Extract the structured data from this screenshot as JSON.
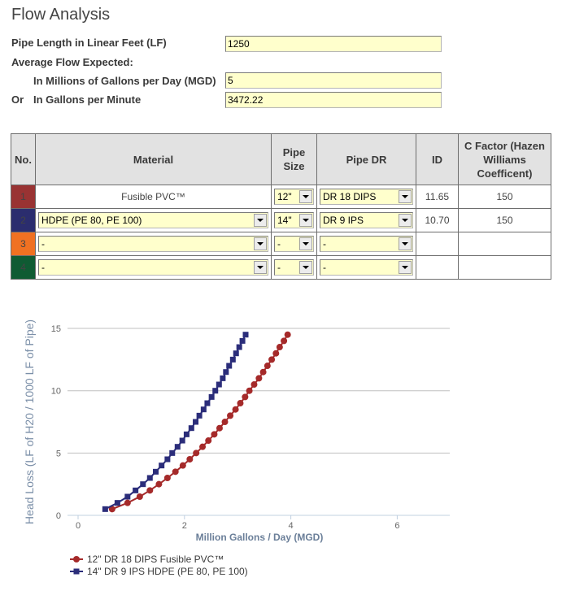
{
  "page": {
    "title": "Flow Analysis"
  },
  "form": {
    "pipe_length": {
      "label": "Pipe Length in Linear Feet (LF)",
      "value": "1250"
    },
    "average_flow_label": "Average Flow Expected:",
    "mgd": {
      "label": "In Millions of Gallons per Day (MGD)",
      "value": "5"
    },
    "gpm": {
      "prefix": "Or",
      "label": "In Gallons per Minute",
      "value": "3472.22"
    }
  },
  "table": {
    "headers": {
      "no": "No.",
      "material": "Material",
      "pipe_size": "Pipe Size",
      "pipe_dr": "Pipe DR",
      "id": "ID",
      "c_factor": "C Factor (Hazen Williams Coefficent)"
    },
    "rows": [
      {
        "no": "1",
        "color": "#993333",
        "material": "Fusible PVC™",
        "material_is_select": false,
        "pipe_size": "12\"",
        "pipe_dr": "DR 18 DIPS",
        "id": "11.65",
        "c_factor": "150"
      },
      {
        "no": "2",
        "color": "#2b2d6e",
        "material": "HDPE (PE 80, PE 100)",
        "material_is_select": true,
        "pipe_size": "14\"",
        "pipe_dr": "DR 9 IPS",
        "id": "10.70",
        "c_factor": "150"
      },
      {
        "no": "3",
        "color": "#f07122",
        "material": "-",
        "material_is_select": true,
        "pipe_size": "-",
        "pipe_dr": "-",
        "id": "",
        "c_factor": ""
      },
      {
        "no": "4",
        "color": "#0f5b33",
        "material": "-",
        "material_is_select": true,
        "pipe_size": "-",
        "pipe_dr": "-",
        "id": "",
        "c_factor": ""
      }
    ]
  },
  "chart_data": {
    "type": "line",
    "title": "",
    "xlabel": "Million Gallons / Day (MGD)",
    "ylabel": "Head Loss (LF of H20 / 1000 LF of Pipe)",
    "xlim": [
      0,
      7
    ],
    "ylim": [
      0,
      15
    ],
    "x_ticks": [
      0,
      2,
      4,
      6
    ],
    "y_ticks": [
      0,
      5,
      10,
      15
    ],
    "grid": "horizontal",
    "legend_position": "bottom-left",
    "series": [
      {
        "name": "12\" DR 18 DIPS Fusible PVC™",
        "color": "#a52a2a",
        "marker": "circle",
        "x": [
          0.64,
          0.93,
          1.16,
          1.35,
          1.52,
          1.68,
          1.83,
          1.97,
          2.1,
          2.22,
          2.34,
          2.45,
          2.56,
          2.66,
          2.76,
          2.86,
          2.96,
          3.05,
          3.14,
          3.22,
          3.31,
          3.4,
          3.48,
          3.56,
          3.64,
          3.72,
          3.79,
          3.87,
          3.94
        ],
        "y": [
          0.5,
          1.0,
          1.5,
          2.0,
          2.5,
          3.0,
          3.5,
          4.0,
          4.5,
          5.0,
          5.5,
          6.0,
          6.5,
          7.0,
          7.5,
          8.0,
          8.5,
          9.0,
          9.5,
          10.0,
          10.5,
          11.0,
          11.5,
          12.0,
          12.5,
          13.0,
          13.5,
          14.0,
          14.5
        ]
      },
      {
        "name": "14\" DR 9 IPS HDPE (PE 80, PE 100)",
        "color": "#2b2d7a",
        "marker": "square",
        "x": [
          0.51,
          0.74,
          0.93,
          1.08,
          1.22,
          1.35,
          1.46,
          1.57,
          1.68,
          1.77,
          1.87,
          1.96,
          2.04,
          2.13,
          2.21,
          2.28,
          2.36,
          2.43,
          2.51,
          2.58,
          2.65,
          2.72,
          2.78,
          2.84,
          2.91,
          2.97,
          3.03,
          3.09,
          3.15
        ],
        "y": [
          0.5,
          1.0,
          1.5,
          2.0,
          2.5,
          3.0,
          3.5,
          4.0,
          4.5,
          5.0,
          5.5,
          6.0,
          6.5,
          7.0,
          7.5,
          8.0,
          8.5,
          9.0,
          9.5,
          10.0,
          10.5,
          11.0,
          11.5,
          12.0,
          12.5,
          13.0,
          13.5,
          14.0,
          14.5
        ]
      }
    ]
  }
}
